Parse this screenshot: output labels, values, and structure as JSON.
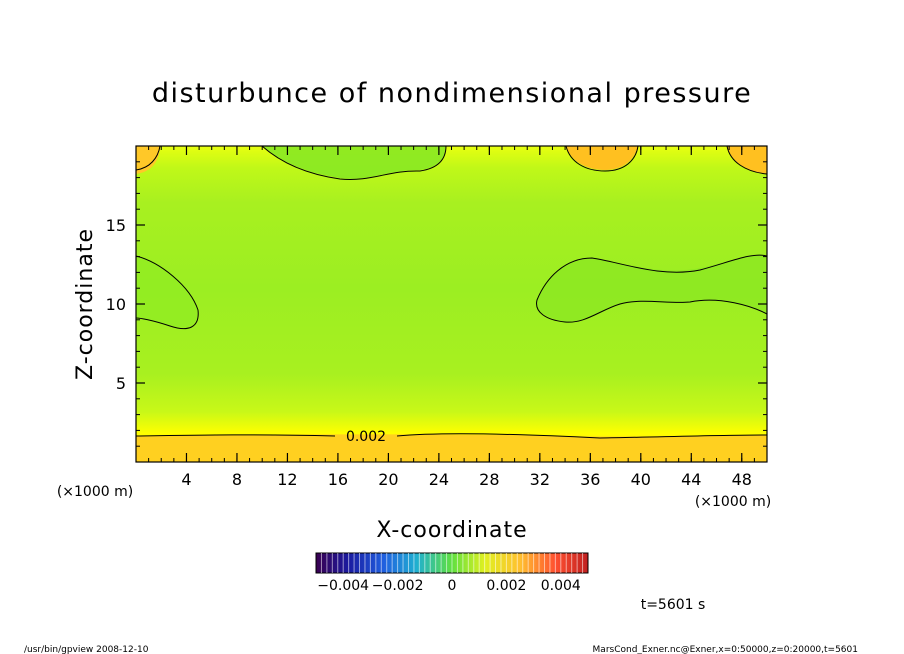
{
  "chart_data": {
    "type": "heatmap",
    "title": "disturbunce of nondimensional pressure",
    "xlabel": "X-coordinate",
    "ylabel": "Z-coordinate",
    "x_unit": "(×1000 m)",
    "y_unit": "(×1000 m)",
    "xlim": [
      0,
      50
    ],
    "ylim": [
      0,
      20
    ],
    "x_ticks": [
      4,
      8,
      12,
      16,
      20,
      24,
      28,
      32,
      36,
      40,
      44,
      48
    ],
    "y_ticks": [
      5,
      10,
      15
    ],
    "contour_label": "0.002",
    "colorbar": {
      "min": -0.005,
      "max": 0.005,
      "tick_values": [
        -0.004,
        -0.002,
        0,
        0.002,
        0.004
      ],
      "tick_labels": [
        "−0.004",
        "−0.002",
        "0",
        "0.002",
        "0.004"
      ]
    },
    "time_label": "t=5601 s",
    "field_summary": "perturbation near 0.0013 in the interior, about 0.002–0.003 near the ground and in the upper corners"
  },
  "footer": {
    "left": "/usr/bin/gpview  2008-12-10",
    "right": "MarsCond_Exner.nc@Exner,x=0:50000,z=0:20000,t=5601"
  },
  "colors": {
    "yellow": "#ffff00",
    "orange": "#ffc020",
    "green": "#88ee22",
    "line": "#000000"
  }
}
